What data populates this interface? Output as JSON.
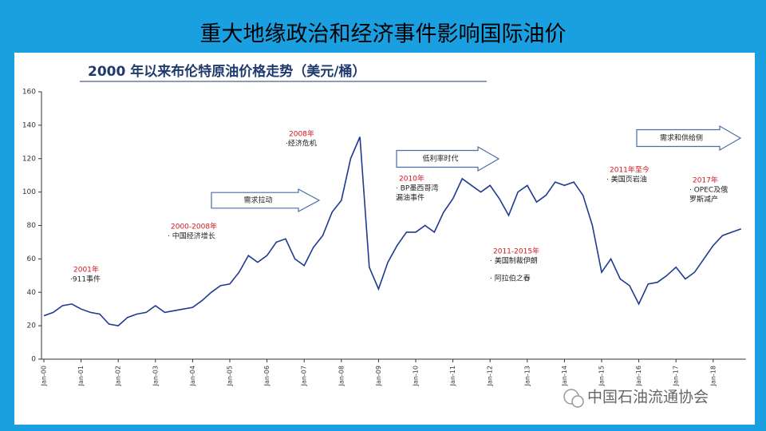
{
  "header": {
    "title": "重大地缘政治和经济事件影响国际油价"
  },
  "chart_data": {
    "type": "line",
    "title": "2000 年以来布伦特原油价格走势（美元/桶）",
    "categories": [
      "Jan-00",
      null,
      null,
      null,
      "Jan-01",
      null,
      null,
      null,
      "Jan-02",
      null,
      null,
      null,
      "Jan-03",
      null,
      null,
      null,
      "Jan-04",
      null,
      null,
      null,
      "Jan-05",
      null,
      null,
      null,
      "Jan-06",
      null,
      null,
      null,
      "Jan-07",
      null,
      null,
      null,
      "Jan-08",
      null,
      null,
      null,
      "Jan-09",
      null,
      null,
      null,
      "Jan-10",
      null,
      null,
      null,
      "Jan-11",
      null,
      null,
      null,
      "Jan-12",
      null,
      null,
      null,
      "Jan-13",
      null,
      null,
      null,
      "Jan-14",
      null,
      null,
      null,
      "Jan-15",
      null,
      null,
      null,
      "Jan-16",
      null,
      null,
      null,
      "Jan-17",
      null,
      null,
      null,
      "Jan-18",
      null,
      null,
      null
    ],
    "series": [
      {
        "name": "布伦特原油价格",
        "color": "#1f3a8f",
        "values": [
          26,
          28,
          32,
          33,
          30,
          28,
          27,
          21,
          20,
          25,
          27,
          28,
          32,
          28,
          29,
          30,
          31,
          35,
          40,
          44,
          45,
          52,
          62,
          58,
          62,
          70,
          72,
          60,
          56,
          67,
          74,
          88,
          95,
          120,
          133,
          55,
          42,
          58,
          68,
          76,
          76,
          80,
          76,
          88,
          96,
          108,
          104,
          100,
          104,
          96,
          86,
          100,
          104,
          94,
          98,
          106,
          104,
          106,
          98,
          80,
          52,
          60,
          48,
          44,
          33,
          45,
          46,
          50,
          55,
          48,
          52,
          60,
          68,
          74,
          76,
          78
        ]
      }
    ],
    "ylim": [
      0,
      160
    ],
    "yticks": [
      0,
      20,
      40,
      60,
      80,
      100,
      120,
      140,
      160
    ],
    "annotations": [
      {
        "title": "2001年",
        "items": [
          "·911事件"
        ]
      },
      {
        "title": "2000-2008年",
        "items": [
          "· 中国经济增长"
        ]
      },
      {
        "title": "2008年",
        "items": [
          "·经济危机"
        ]
      },
      {
        "title": "2010年",
        "items": [
          "· BP墨西哥湾",
          "漏油事件"
        ]
      },
      {
        "title": "2011-2015年",
        "items": [
          "· 美国制裁伊朗",
          "· 阿拉伯之春"
        ]
      },
      {
        "title": "2011年至今",
        "items": [
          "· 美国页岩油"
        ]
      },
      {
        "title": "2017年",
        "items": [
          "· OPEC及俄",
          "罗斯减产"
        ]
      }
    ],
    "arrows": [
      "需求拉动",
      "低利率时代",
      "需求和供给侧"
    ]
  },
  "watermark": "中国石油流通协会"
}
